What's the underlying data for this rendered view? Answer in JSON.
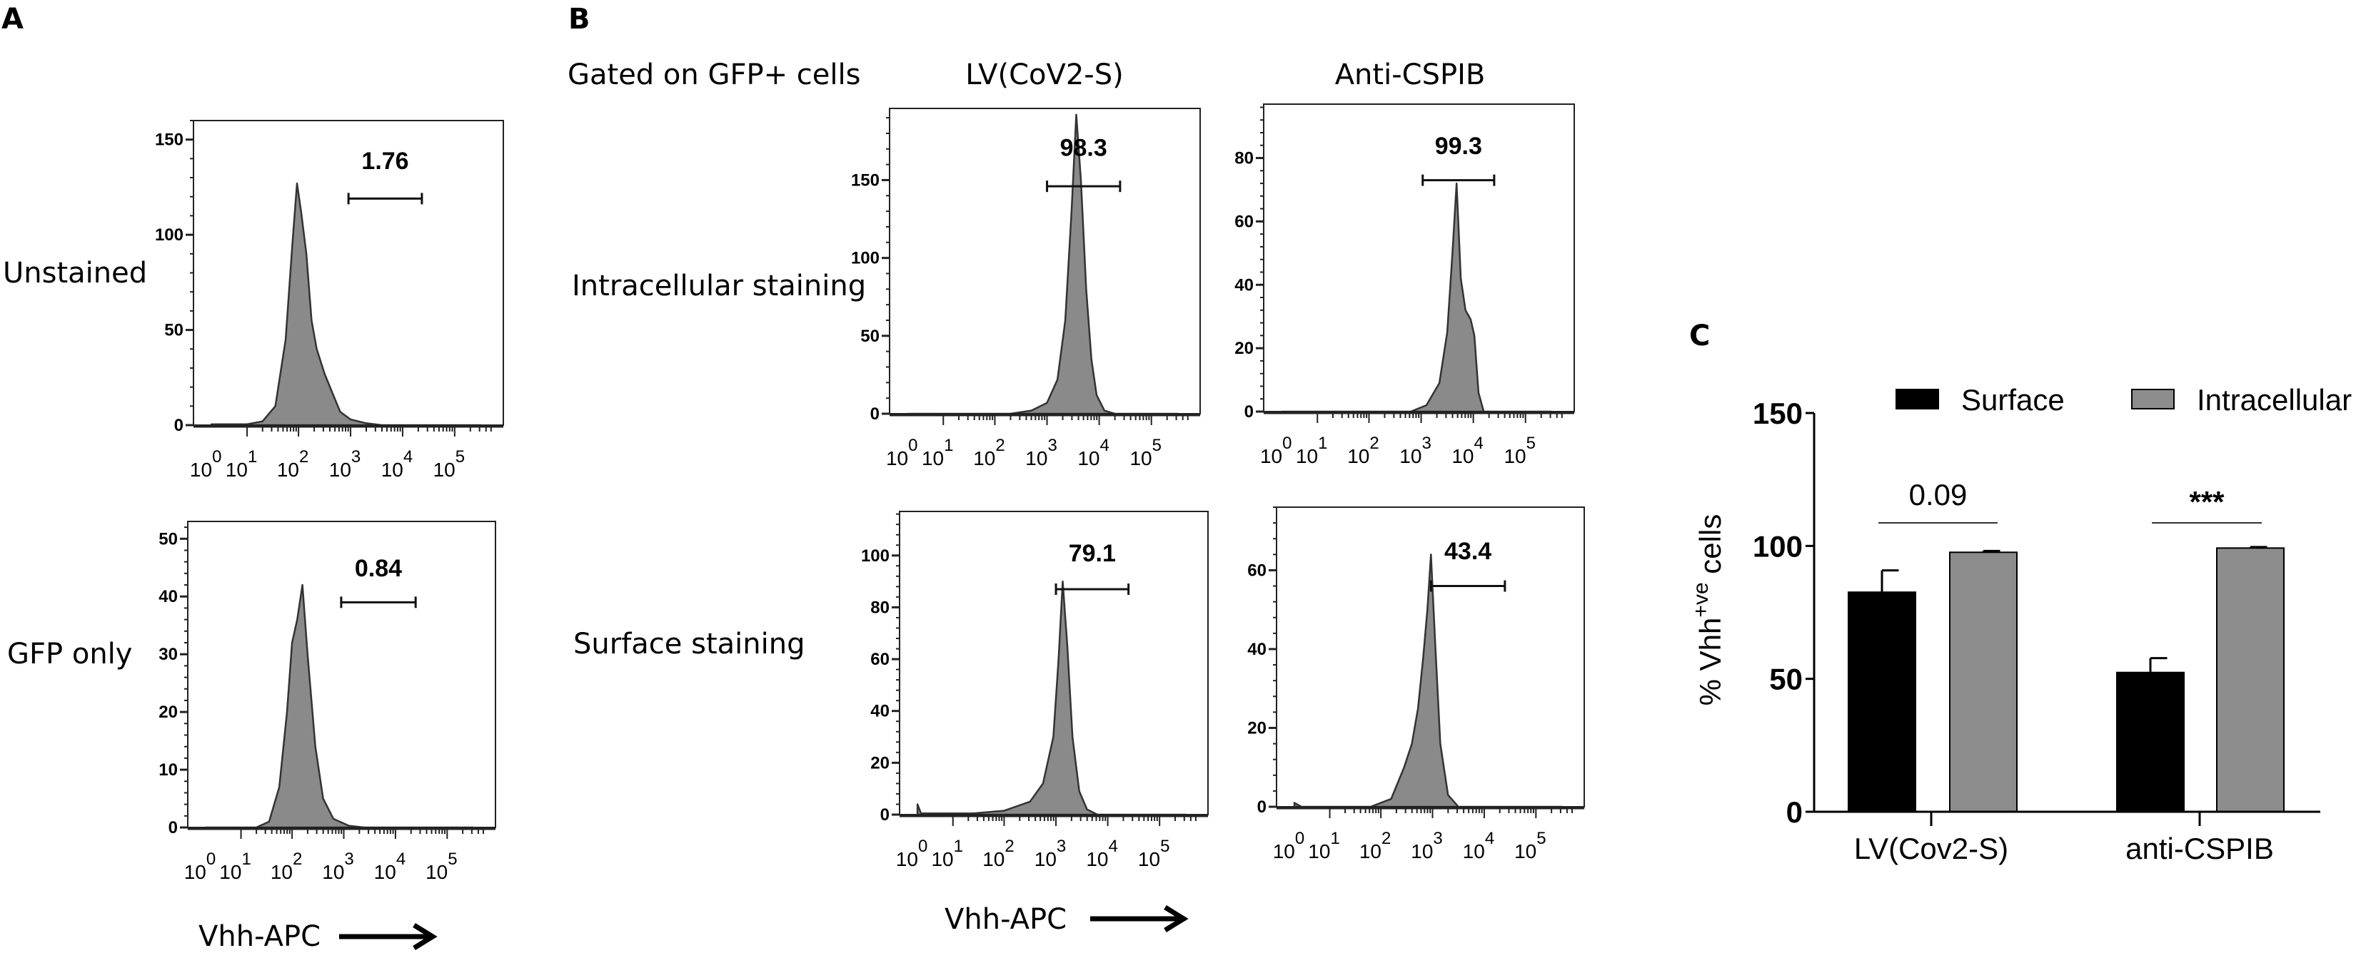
{
  "labels": {
    "panel_a": "A",
    "panel_b": "B",
    "panel_c": "C",
    "gated": "Gated on GFP+ cells",
    "col_lv": "LV(CoV2-S)",
    "col_anti": "Anti-CSPIB",
    "row_unstained": "Unstained",
    "row_gfp": "GFP only",
    "row_intra": "Intracellular staining",
    "row_surf": "Surface staining",
    "xaxis_a": "Vhh-APC",
    "xaxis_b": "Vhh-APC"
  },
  "colors": {
    "histogram_fill": "#8a8a8a",
    "histogram_line": "#333333",
    "surface": "#000000",
    "intracellular": "#8c8c8c"
  },
  "chart_data": [
    {
      "id": "A-unstained",
      "type": "area",
      "xlabel": "Vhh-APC",
      "xscale": "log10",
      "xtick_exponents": [
        "0",
        "1",
        "2",
        "3",
        "4",
        "5"
      ],
      "ylim": [
        0,
        160
      ],
      "yticks": [
        0,
        50,
        100,
        150
      ],
      "gate": {
        "label": "1.76",
        "range_log10": [
          2.96,
          4.37
        ],
        "level": 119,
        "label_level": 139
      },
      "points": [
        [
          0,
          0.5
        ],
        [
          1.0,
          0.5
        ],
        [
          1.3,
          2
        ],
        [
          1.55,
          10
        ],
        [
          1.75,
          45
        ],
        [
          1.88,
          95
        ],
        [
          1.97,
          127
        ],
        [
          2.05,
          112
        ],
        [
          2.15,
          90
        ],
        [
          2.25,
          55
        ],
        [
          2.35,
          40
        ],
        [
          2.5,
          27
        ],
        [
          2.65,
          17
        ],
        [
          2.8,
          7
        ],
        [
          3.0,
          3
        ],
        [
          3.3,
          1
        ],
        [
          3.6,
          0
        ],
        [
          5.5,
          0
        ]
      ]
    },
    {
      "id": "A-gfp-only",
      "type": "area",
      "xlabel": "Vhh-APC",
      "xscale": "log10",
      "xtick_exponents": [
        "0",
        "1",
        "2",
        "3",
        "4",
        "5"
      ],
      "ylim": [
        0,
        53
      ],
      "yticks": [
        0,
        10,
        20,
        30,
        40,
        50
      ],
      "gate": {
        "label": "0.84",
        "range_log10": [
          2.95,
          4.39
        ],
        "level": 39,
        "label_level": 45
      },
      "points": [
        [
          0,
          0
        ],
        [
          1.3,
          0
        ],
        [
          1.55,
          1
        ],
        [
          1.75,
          7
        ],
        [
          1.9,
          20
        ],
        [
          2.0,
          32
        ],
        [
          2.1,
          36
        ],
        [
          2.2,
          42
        ],
        [
          2.3,
          30
        ],
        [
          2.45,
          14
        ],
        [
          2.6,
          5
        ],
        [
          2.8,
          1.5
        ],
        [
          3.1,
          0.3
        ],
        [
          3.4,
          0
        ],
        [
          5.5,
          0
        ]
      ]
    },
    {
      "id": "B-intracellular-LV",
      "type": "area",
      "xlabel": "Vhh-APC",
      "xscale": "log10",
      "xtick_exponents": [
        "0",
        "1",
        "2",
        "3",
        "4",
        "5"
      ],
      "ylim": [
        0,
        196
      ],
      "yticks": [
        0,
        50,
        100,
        150
      ],
      "gate": {
        "label": "98.3",
        "range_log10": [
          3.0,
          4.4
        ],
        "level": 146,
        "label_level": 171
      },
      "points": [
        [
          0,
          0
        ],
        [
          2.3,
          0
        ],
        [
          2.7,
          2
        ],
        [
          3.0,
          7
        ],
        [
          3.2,
          22
        ],
        [
          3.35,
          60
        ],
        [
          3.47,
          130
        ],
        [
          3.56,
          192
        ],
        [
          3.65,
          150
        ],
        [
          3.75,
          80
        ],
        [
          3.85,
          35
        ],
        [
          3.95,
          12
        ],
        [
          4.1,
          2
        ],
        [
          4.3,
          0
        ],
        [
          5.5,
          0
        ]
      ]
    },
    {
      "id": "B-intracellular-anti",
      "type": "area",
      "xlabel": "Vhh-APC",
      "xscale": "log10",
      "xtick_exponents": [
        "0",
        "1",
        "2",
        "3",
        "4",
        "5"
      ],
      "ylim": [
        0,
        97
      ],
      "yticks": [
        0,
        20,
        40,
        60,
        80
      ],
      "gate": {
        "label": "99.3",
        "range_log10": [
          3.03,
          4.4
        ],
        "level": 73,
        "label_level": 84
      },
      "points": [
        [
          0,
          0
        ],
        [
          2.8,
          0
        ],
        [
          3.1,
          2
        ],
        [
          3.35,
          9
        ],
        [
          3.5,
          25
        ],
        [
          3.6,
          50
        ],
        [
          3.68,
          72
        ],
        [
          3.76,
          42
        ],
        [
          3.85,
          32
        ],
        [
          3.95,
          29
        ],
        [
          4.02,
          24
        ],
        [
          4.1,
          6
        ],
        [
          4.2,
          0
        ],
        [
          5.5,
          0
        ]
      ]
    },
    {
      "id": "B-surface-LV",
      "type": "area",
      "xlabel": "Vhh-APC",
      "xscale": "log10",
      "xtick_exponents": [
        "0",
        "1",
        "2",
        "3",
        "4",
        "5"
      ],
      "ylim": [
        0,
        117
      ],
      "yticks": [
        0,
        20,
        40,
        60,
        80,
        100
      ],
      "gate": {
        "label": "79.1",
        "range_log10": [
          3.0,
          4.4
        ],
        "level": 87,
        "label_level": 101
      },
      "points": [
        [
          0,
          4
        ],
        [
          0.1,
          0.5
        ],
        [
          1.4,
          0.5
        ],
        [
          2.0,
          1.5
        ],
        [
          2.5,
          5
        ],
        [
          2.75,
          12
        ],
        [
          2.95,
          30
        ],
        [
          3.05,
          60
        ],
        [
          3.13,
          90
        ],
        [
          3.22,
          65
        ],
        [
          3.32,
          30
        ],
        [
          3.45,
          9
        ],
        [
          3.6,
          2
        ],
        [
          3.8,
          0
        ],
        [
          5.5,
          0
        ]
      ]
    },
    {
      "id": "B-surface-anti",
      "type": "area",
      "xlabel": "Vhh-APC",
      "xscale": "log10",
      "xtick_exponents": [
        "0",
        "1",
        "2",
        "3",
        "4",
        "5"
      ],
      "ylim": [
        0,
        76
      ],
      "yticks": [
        0,
        20,
        40,
        60
      ],
      "gate": {
        "label": "43.4",
        "range_log10": [
          2.97,
          4.4
        ],
        "level": 56,
        "label_level": 65
      },
      "points": [
        [
          0,
          1
        ],
        [
          0.2,
          0
        ],
        [
          1.8,
          0
        ],
        [
          2.2,
          2
        ],
        [
          2.45,
          10
        ],
        [
          2.6,
          16
        ],
        [
          2.72,
          25
        ],
        [
          2.82,
          38
        ],
        [
          2.9,
          50
        ],
        [
          2.97,
          64
        ],
        [
          3.05,
          42
        ],
        [
          3.15,
          16
        ],
        [
          3.3,
          3
        ],
        [
          3.5,
          0
        ],
        [
          5.5,
          0
        ]
      ]
    },
    {
      "id": "C-bar",
      "type": "bar",
      "categories": [
        "LV(Cov2-S)",
        "anti-CSPIB"
      ],
      "series": [
        {
          "name": "Surface",
          "values": [
            82.6,
            52.4
          ],
          "errors": [
            8.2,
            5.4
          ]
        },
        {
          "name": "Intracellular",
          "values": [
            97.6,
            99.2
          ],
          "errors": [
            0.5,
            0.4
          ]
        }
      ],
      "ylim": [
        0,
        150
      ],
      "yticks": [
        0,
        50,
        100,
        150
      ],
      "ylabel": {
        "main": "% Vhh",
        "sup": "+ve",
        "tail": " cells"
      },
      "significance": [
        "0.09",
        "***"
      ],
      "legend": "top-right"
    }
  ]
}
